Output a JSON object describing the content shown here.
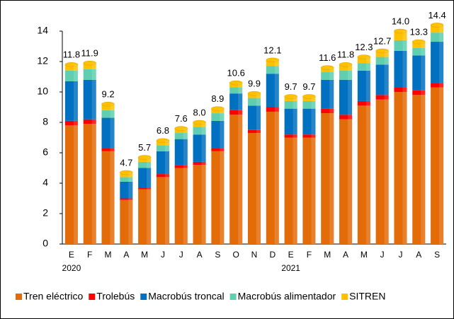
{
  "chart_data": {
    "type": "stacked_bar",
    "categories": [
      "E",
      "F",
      "M",
      "A",
      "M",
      "J",
      "J",
      "A",
      "S",
      "O",
      "N",
      "D",
      "E",
      "F",
      "M",
      "A",
      "M",
      "J",
      "J",
      "A",
      "S"
    ],
    "year_labels": [
      "2020",
      null,
      null,
      null,
      null,
      null,
      null,
      null,
      null,
      null,
      null,
      null,
      "2021",
      null,
      null,
      null,
      null,
      null,
      null,
      null,
      null
    ],
    "series": [
      {
        "name": "Tren eléctrico",
        "color": "#e36c09",
        "values": [
          7.8,
          7.9,
          6.1,
          2.9,
          3.6,
          4.4,
          5.0,
          5.2,
          6.1,
          8.5,
          7.3,
          8.7,
          7.0,
          7.0,
          8.6,
          8.2,
          9.1,
          9.5,
          10.0,
          9.8,
          10.3
        ]
      },
      {
        "name": "Trolebús",
        "color": "#ff0000",
        "values": [
          0.3,
          0.3,
          0.2,
          0.1,
          0.1,
          0.2,
          0.2,
          0.2,
          0.2,
          0.3,
          0.2,
          0.3,
          0.2,
          0.2,
          0.3,
          0.3,
          0.3,
          0.3,
          0.3,
          0.3,
          0.3
        ]
      },
      {
        "name": "Macrobús troncal",
        "color": "#0070c0",
        "values": [
          2.6,
          2.6,
          2.0,
          1.1,
          1.3,
          1.5,
          1.7,
          1.8,
          1.8,
          1.1,
          1.6,
          2.2,
          1.7,
          1.7,
          1.9,
          2.3,
          2.0,
          2.0,
          2.4,
          2.3,
          2.7
        ]
      },
      {
        "name": "Macrobús alimentador",
        "color": "#5fcfb0",
        "values": [
          0.7,
          0.7,
          0.5,
          0.3,
          0.4,
          0.4,
          0.4,
          0.5,
          0.5,
          0.4,
          0.5,
          0.5,
          0.5,
          0.5,
          0.5,
          0.6,
          0.5,
          0.5,
          0.7,
          0.5,
          0.6
        ]
      },
      {
        "name": "SITREN",
        "color": "#ffc000",
        "values": [
          0.4,
          0.4,
          0.4,
          0.3,
          0.3,
          0.3,
          0.3,
          0.3,
          0.3,
          0.3,
          0.3,
          0.4,
          0.3,
          0.3,
          0.3,
          0.4,
          0.4,
          0.4,
          0.6,
          0.4,
          0.5
        ]
      }
    ],
    "totals": [
      11.8,
      11.9,
      9.2,
      4.7,
      5.7,
      6.8,
      7.6,
      8.0,
      8.9,
      10.6,
      9.9,
      12.1,
      9.7,
      9.7,
      11.6,
      11.8,
      12.3,
      12.7,
      14.0,
      13.3,
      14.4
    ],
    "value_labels": [
      "11.8",
      "11.9",
      "9.2",
      "4.7",
      "5.7",
      "6.8",
      "7.6",
      "8.0",
      "8.9",
      "10.6",
      "9.9",
      "12.1",
      "9.7",
      "9.7",
      "11.6",
      "11.8",
      "12.3",
      "12.7",
      "14.0",
      "13.3",
      "14.4"
    ],
    "ylim": [
      0,
      14
    ],
    "yticks": [
      0,
      2,
      4,
      6,
      8,
      10,
      12,
      14
    ],
    "grid": false,
    "legend": "bottom"
  }
}
